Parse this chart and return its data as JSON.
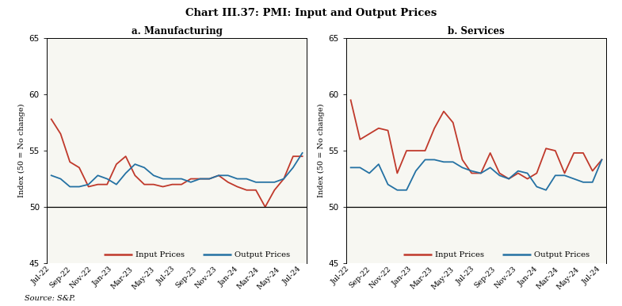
{
  "title": "Chart III.37: PMI: Input and Output Prices",
  "source": "Source: S&P.",
  "x_labels": [
    "Jul-22",
    "Sep-22",
    "Nov-22",
    "Jan-23",
    "Mar-23",
    "May-23",
    "Jul-23",
    "Sep-23",
    "Nov-23",
    "Jan-24",
    "Mar-24",
    "May-24",
    "Jul-24"
  ],
  "mfg_input": [
    57.8,
    56.5,
    54.0,
    53.5,
    51.8,
    52.0,
    52.0,
    53.8,
    54.5,
    52.8,
    52.0,
    52.0,
    51.8,
    52.0,
    52.0,
    52.5,
    52.5,
    52.5,
    52.8,
    52.2,
    51.8,
    51.5,
    51.5,
    50.0,
    51.5,
    52.5,
    54.5,
    54.5
  ],
  "mfg_output": [
    52.8,
    52.5,
    51.8,
    51.8,
    52.0,
    52.8,
    52.5,
    52.0,
    53.0,
    53.8,
    53.5,
    52.8,
    52.5,
    52.5,
    52.5,
    52.2,
    52.5,
    52.5,
    52.8,
    52.8,
    52.5,
    52.5,
    52.2,
    52.2,
    52.2,
    52.5,
    53.5,
    54.8
  ],
  "svc_input": [
    59.5,
    56.0,
    56.5,
    57.0,
    56.8,
    53.0,
    55.0,
    55.0,
    55.0,
    57.0,
    58.5,
    57.5,
    54.2,
    53.0,
    53.0,
    54.8,
    53.0,
    52.5,
    53.0,
    52.5,
    53.0,
    55.2,
    55.0,
    53.0,
    54.8,
    54.8,
    53.2,
    54.2
  ],
  "svc_output": [
    53.5,
    53.5,
    53.0,
    53.8,
    52.0,
    51.5,
    51.5,
    53.2,
    54.2,
    54.2,
    54.0,
    54.0,
    53.5,
    53.2,
    53.0,
    53.5,
    52.8,
    52.5,
    53.2,
    53.0,
    51.8,
    51.5,
    52.8,
    52.8,
    52.5,
    52.2,
    52.2,
    54.2
  ],
  "mfg_title": "a. Manufacturing",
  "svc_title": "b. Services",
  "ylim": [
    45,
    65
  ],
  "yticks": [
    45,
    50,
    55,
    60,
    65
  ],
  "input_color": "#c0392b",
  "output_color": "#2471a3",
  "bg_color": "#f7f7f2",
  "line_width": 1.3
}
